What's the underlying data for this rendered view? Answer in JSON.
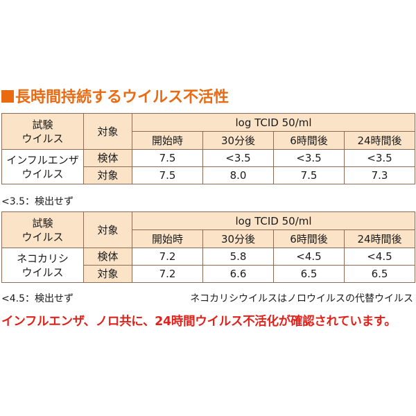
{
  "heading": {
    "marker_color": "#ea6a12",
    "text": "長時間持続するウイルス不活性"
  },
  "tables": [
    {
      "col_virus": "試験\nウイルス",
      "col_target": "対象",
      "unit": "log TCID 50/ml",
      "times": [
        "開始時",
        "30分後",
        "6時間後",
        "24時間後"
      ],
      "virus_name": "インフルエンザ\nウイルス",
      "rows": [
        {
          "label": "検体",
          "values": [
            "7.5",
            "<3.5",
            "<3.5",
            "<3.5"
          ]
        },
        {
          "label": "対象",
          "values": [
            "7.5",
            "8.0",
            "7.5",
            "7.3"
          ]
        }
      ]
    },
    {
      "col_virus": "試験\nウイルス",
      "col_target": "対象",
      "unit": "log TCID 50/ml",
      "times": [
        "開始時",
        "30分後",
        "6時間後",
        "24時間後"
      ],
      "virus_name": "ネコカリシ\nウイルス",
      "rows": [
        {
          "label": "検体",
          "values": [
            "7.2",
            "5.8",
            "<4.5",
            "<4.5"
          ]
        },
        {
          "label": "対象",
          "values": [
            "7.2",
            "6.6",
            "6.5",
            "6.5"
          ]
        }
      ]
    }
  ],
  "notes": {
    "note1": "<3.5：検出せず",
    "note2": "<4.5：検出せず",
    "note3": "ネコカリシウイルスはノロウイルスの代替ウイルス"
  },
  "conclusion": "インフルエンザ、ノロ共に、24時間ウイルス不活化が確認されています。",
  "colors": {
    "accent": "#ea6a12",
    "header_fill": "#fbe3c8",
    "conclusion": "#e0221b"
  }
}
